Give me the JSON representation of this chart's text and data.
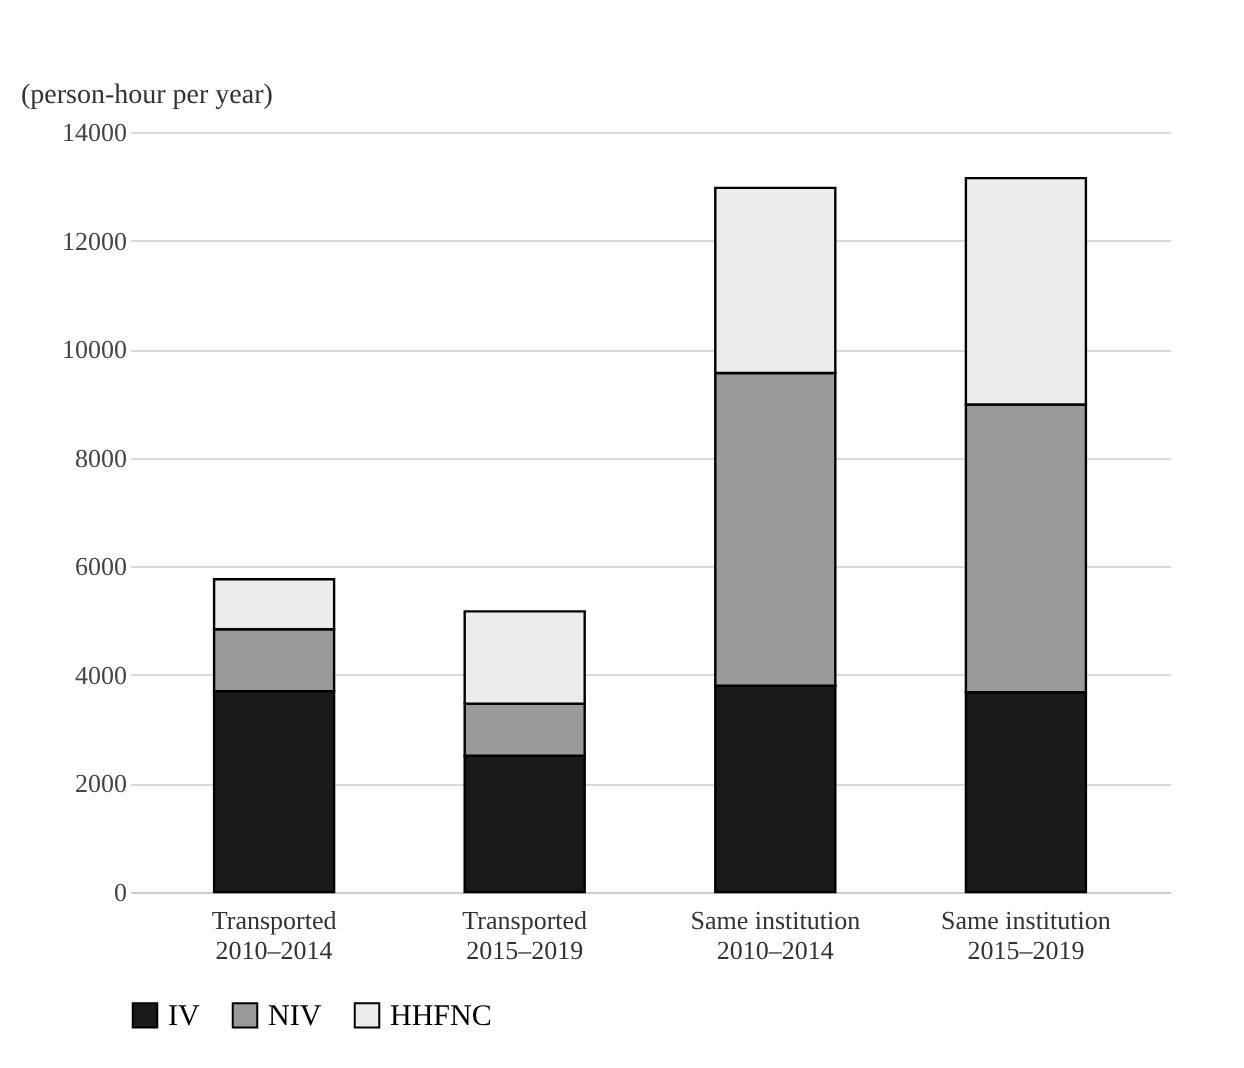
{
  "chart_data": {
    "type": "bar",
    "stacked": true,
    "ylabel": "(person-hour per year)",
    "categories": [
      "Transported\n2010–2014",
      "Transported\n2015–2019",
      "Same institution\n2010–2014",
      "Same institution\n2015–2019"
    ],
    "series": [
      {
        "name": "IV",
        "color": "#1a1a1a",
        "values": [
          3700,
          2510,
          3800,
          3680
        ]
      },
      {
        "name": "NIV",
        "color": "#9a9a9a",
        "values": [
          1140,
          960,
          5760,
          5300
        ]
      },
      {
        "name": "HHFNC",
        "color": "#ececec",
        "values": [
          920,
          1700,
          3410,
          4170
        ]
      }
    ],
    "ylim": [
      0,
      14000
    ],
    "yticks": [
      0,
      2000,
      4000,
      6000,
      8000,
      10000,
      12000,
      14000
    ],
    "grid": "y",
    "legend": "bottom"
  }
}
